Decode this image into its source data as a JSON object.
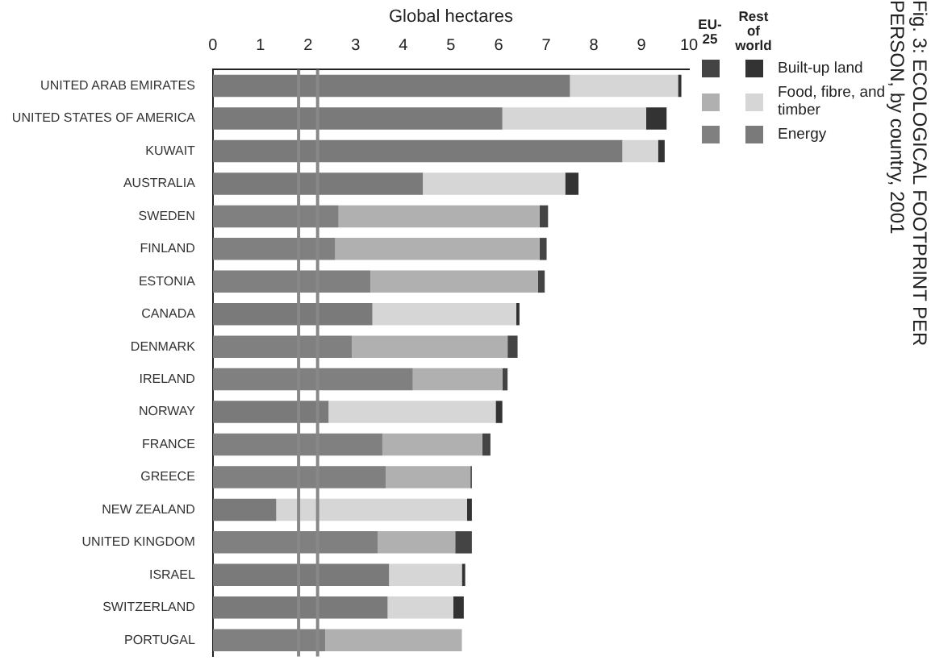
{
  "chart_data": {
    "type": "bar",
    "title": "Fig. 3: ECOLOGICAL FOOTPRINT PER PERSON, by country, 2001",
    "xlabel": "Global hectares",
    "orientation": "horizontal",
    "stacked": true,
    "legend": "right",
    "categories": [
      "UNITED ARAB EMIRATES",
      "UNITED STATES OF AMERICA",
      "KUWAIT",
      "AUSTRALIA",
      "SWEDEN",
      "FINLAND",
      "ESTONIA",
      "CANADA",
      "DENMARK",
      "IRELAND",
      "NORWAY",
      "FRANCE",
      "GREECE",
      "NEW ZEALAND",
      "UNITED KINGDOM",
      "ISRAEL",
      "SWITZERLAND",
      "PORTUGAL"
    ],
    "series": [
      {
        "name": "Energy",
        "color": "#7a7a7a",
        "colors": [
          "#7a7a7a",
          "#7a7a7a",
          "#7a7a7a",
          "#7a7a7a",
          "#808080",
          "#808080",
          "#808080",
          "#7a7a7a",
          "#808080",
          "#808080",
          "#7a7a7a",
          "#808080",
          "#808080",
          "#7a7a7a",
          "#808080",
          "#7a7a7a",
          "#7a7a7a",
          "#808080"
        ],
        "values": [
          7.5,
          6.08,
          8.6,
          4.41,
          2.64,
          2.57,
          3.31,
          3.35,
          2.92,
          4.2,
          2.43,
          3.56,
          3.63,
          1.33,
          3.46,
          3.7,
          3.67,
          2.36
        ]
      },
      {
        "name": "Food, fibre, and timber",
        "color": "#d6d6d6",
        "colors": [
          "#d6d6d6",
          "#d6d6d6",
          "#d6d6d6",
          "#d6d6d6",
          "#b0b0b0",
          "#b0b0b0",
          "#b0b0b0",
          "#d6d6d6",
          "#b0b0b0",
          "#b0b0b0",
          "#d6d6d6",
          "#b0b0b0",
          "#b0b0b0",
          "#d6d6d6",
          "#b0b0b0",
          "#d6d6d6",
          "#d6d6d6",
          "#b0b0b0"
        ],
        "values": [
          2.27,
          3.02,
          0.75,
          2.99,
          4.22,
          4.29,
          3.52,
          3.02,
          3.27,
          1.88,
          3.51,
          2.1,
          1.78,
          4.01,
          1.63,
          1.53,
          1.38,
          2.87
        ]
      },
      {
        "name": "Built-up land",
        "color": "#333333",
        "colors": [
          "#333333",
          "#333333",
          "#333333",
          "#333333",
          "#444444",
          "#444444",
          "#444444",
          "#333333",
          "#444444",
          "#444444",
          "#333333",
          "#444444",
          "#444444",
          "#333333",
          "#444444",
          "#333333",
          "#333333",
          "#444444"
        ],
        "values": [
          0.07,
          0.43,
          0.14,
          0.28,
          0.18,
          0.15,
          0.14,
          0.07,
          0.21,
          0.11,
          0.14,
          0.17,
          0.03,
          0.1,
          0.35,
          0.07,
          0.22,
          0
        ]
      }
    ],
    "xlim": [
      0,
      10
    ],
    "xticks": [
      0,
      1,
      2,
      3,
      4,
      5,
      6,
      7,
      8,
      9,
      10
    ],
    "ref_lines": [
      {
        "axis": "x",
        "value": 1.8,
        "color": "#888888"
      },
      {
        "axis": "x",
        "value": 2.2,
        "color": "#888888"
      }
    ],
    "annotations": [
      "EU-25",
      "Rest of world"
    ]
  }
}
